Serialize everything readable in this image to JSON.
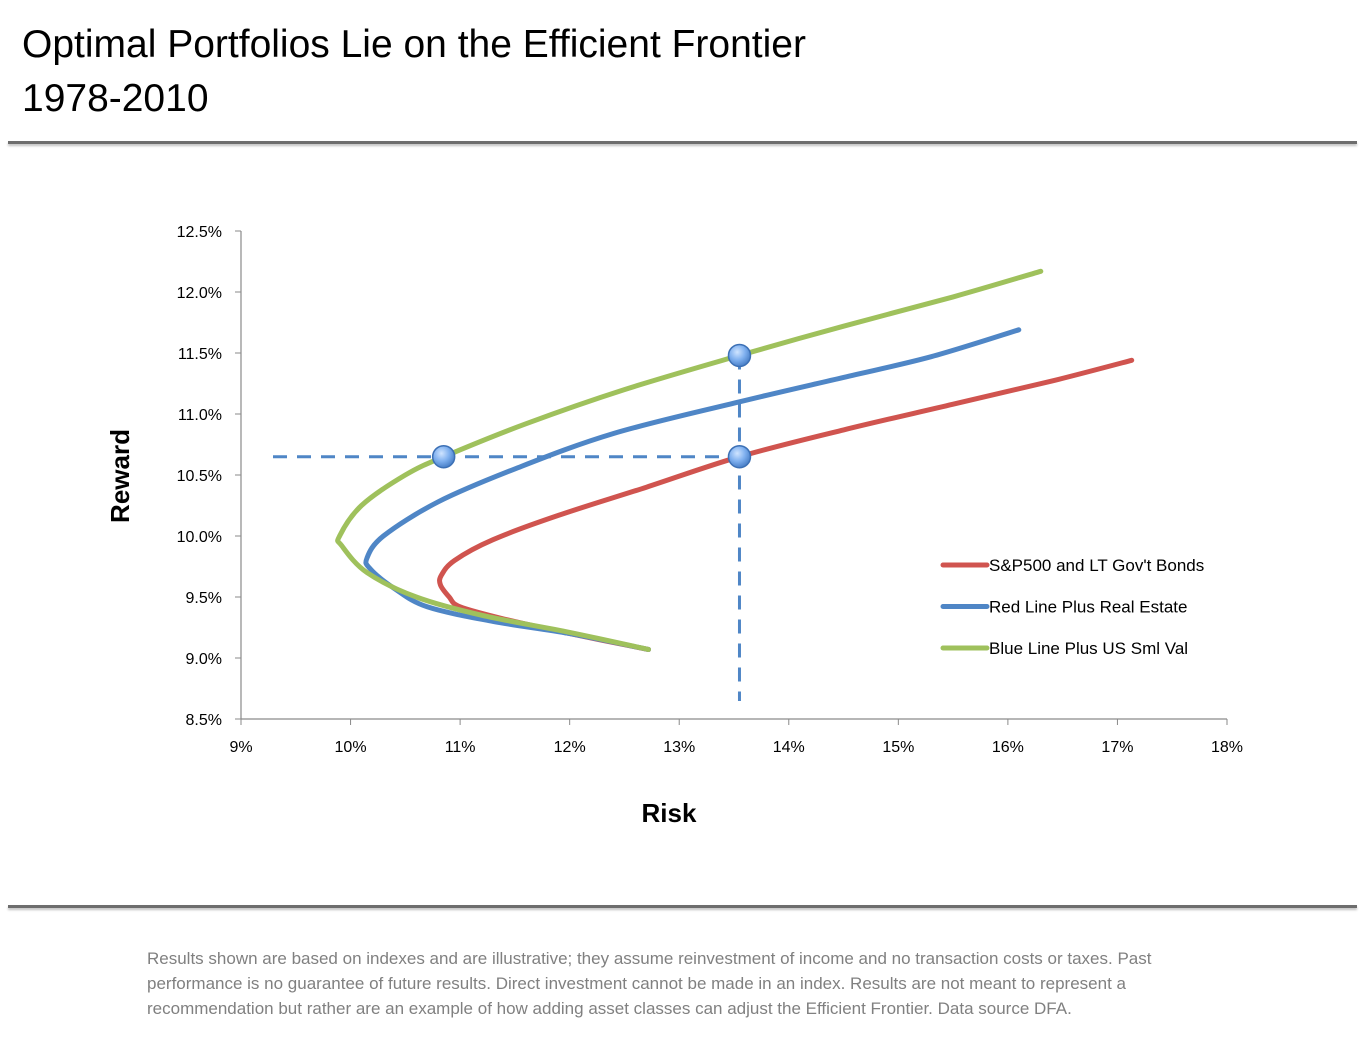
{
  "header": {
    "title_line1": "Optimal Portfolios Lie on the Efficient Frontier",
    "title_line2": "1978-2010"
  },
  "footnote": "Results shown are based on indexes and are illustrative; they assume reinvestment of income and no transaction costs or taxes.  Past performance is no guarantee of future results.  Direct investment cannot be made in an index.  Results are not meant to represent a recommendation but rather are an example of how adding asset classes can adjust the Efficient Frontier.  Data source DFA.",
  "chart_data": {
    "type": "scatter",
    "title": "Optimal Portfolios Lie on the Efficient Frontier 1978-2010",
    "xlabel": "Risk",
    "ylabel": "Reward",
    "xlim": [
      9,
      18
    ],
    "ylim": [
      8.5,
      12.5
    ],
    "x_ticks": [
      "9%",
      "10%",
      "11%",
      "12%",
      "13%",
      "14%",
      "15%",
      "16%",
      "17%",
      "18%"
    ],
    "y_ticks": [
      "8.5%",
      "9.0%",
      "9.5%",
      "10.0%",
      "10.5%",
      "11.0%",
      "11.5%",
      "12.0%",
      "12.5%"
    ],
    "grid": false,
    "legend_position": "right",
    "series": [
      {
        "name": "S&P500 and LT Gov't Bonds",
        "color": "#d0544f",
        "points": [
          [
            12.72,
            9.07
          ],
          [
            12.0,
            9.2
          ],
          [
            11.4,
            9.32
          ],
          [
            11.0,
            9.42
          ],
          [
            10.9,
            9.5
          ],
          [
            10.82,
            9.6
          ],
          [
            10.83,
            9.68
          ],
          [
            10.95,
            9.8
          ],
          [
            11.3,
            9.97
          ],
          [
            11.9,
            10.17
          ],
          [
            12.7,
            10.4
          ],
          [
            13.55,
            10.65
          ],
          [
            14.5,
            10.87
          ],
          [
            15.5,
            11.08
          ],
          [
            16.4,
            11.27
          ],
          [
            17.13,
            11.44
          ]
        ]
      },
      {
        "name": "Red Line Plus Real Estate",
        "color": "#4f86c6",
        "points": [
          [
            12.72,
            9.07
          ],
          [
            12.0,
            9.2
          ],
          [
            11.3,
            9.3
          ],
          [
            10.7,
            9.42
          ],
          [
            10.4,
            9.57
          ],
          [
            10.18,
            9.73
          ],
          [
            10.15,
            9.82
          ],
          [
            10.3,
            10.0
          ],
          [
            10.8,
            10.28
          ],
          [
            11.5,
            10.55
          ],
          [
            12.4,
            10.84
          ],
          [
            13.55,
            11.1
          ],
          [
            14.5,
            11.3
          ],
          [
            15.3,
            11.47
          ],
          [
            16.1,
            11.69
          ]
        ]
      },
      {
        "name": "Blue Line Plus US Sml Val",
        "color": "#9fc15c",
        "points": [
          [
            12.72,
            9.07
          ],
          [
            12.0,
            9.21
          ],
          [
            11.2,
            9.35
          ],
          [
            10.6,
            9.5
          ],
          [
            10.15,
            9.7
          ],
          [
            9.92,
            9.92
          ],
          [
            9.9,
            10.0
          ],
          [
            10.1,
            10.25
          ],
          [
            10.5,
            10.5
          ],
          [
            10.85,
            10.65
          ],
          [
            11.6,
            10.92
          ],
          [
            12.5,
            11.2
          ],
          [
            13.55,
            11.48
          ],
          [
            14.5,
            11.72
          ],
          [
            15.5,
            11.96
          ],
          [
            16.3,
            12.17
          ]
        ]
      }
    ],
    "reference_lines": [
      {
        "orientation": "horizontal",
        "y": 10.65,
        "x_from": 9,
        "x_to": 13.55,
        "style": "dashed",
        "color": "#4f86c6"
      },
      {
        "orientation": "vertical",
        "x": 13.55,
        "y_from": 8.5,
        "y_to": 11.48,
        "style": "dashed",
        "color": "#4f86c6"
      }
    ],
    "highlight_points": [
      {
        "x": 10.85,
        "y": 10.65
      },
      {
        "x": 13.55,
        "y": 10.65
      },
      {
        "x": 13.55,
        "y": 11.48
      }
    ]
  }
}
